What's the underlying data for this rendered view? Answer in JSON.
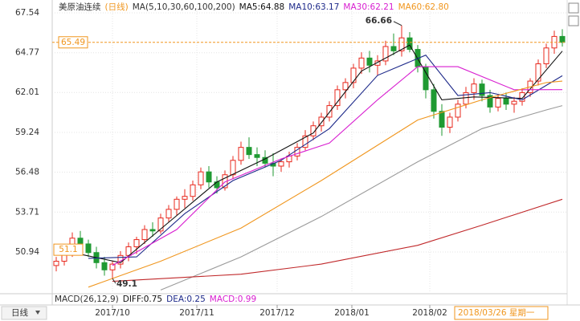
{
  "chart_data": {
    "type": "candlestick",
    "title": "美原油连续",
    "period": "(日线)",
    "ma_params": "MA(5,10,30,60,100,200)",
    "ylim": [
      48.1,
      68.15
    ],
    "yticks": [
      67.54,
      64.77,
      62.01,
      59.24,
      56.48,
      53.71,
      50.94
    ],
    "xlim": [
      -0.5,
      63.5
    ],
    "xticks": [
      {
        "value": 7,
        "label": "2017/10"
      },
      {
        "value": 17.5,
        "label": "2017/11"
      },
      {
        "value": 27.5,
        "label": "2017/12"
      },
      {
        "value": 36.8,
        "label": "2018/01"
      },
      {
        "value": 46.5,
        "label": "2018/02"
      }
    ],
    "grid": true,
    "up_color": "#e8281e",
    "down_color": "#1f9a32",
    "candles": [
      [
        50.0,
        50.6,
        49.6,
        50.3
      ],
      [
        50.3,
        51.0,
        50.0,
        50.8
      ],
      [
        50.8,
        52.3,
        50.6,
        51.9
      ],
      [
        51.9,
        52.4,
        51.2,
        51.5
      ],
      [
        51.5,
        51.8,
        50.6,
        50.9
      ],
      [
        50.9,
        51.3,
        49.8,
        50.2
      ],
      [
        50.2,
        50.6,
        49.3,
        49.7
      ],
      [
        49.7,
        50.3,
        49.1,
        50.1
      ],
      [
        50.1,
        51.0,
        49.8,
        50.7
      ],
      [
        50.7,
        51.6,
        50.3,
        51.3
      ],
      [
        51.3,
        52.0,
        50.8,
        51.8
      ],
      [
        51.8,
        52.8,
        51.5,
        52.5
      ],
      [
        52.5,
        53.0,
        52.0,
        52.4
      ],
      [
        52.4,
        53.6,
        52.2,
        53.3
      ],
      [
        53.3,
        54.2,
        53.0,
        53.9
      ],
      [
        53.9,
        54.8,
        53.5,
        54.6
      ],
      [
        54.6,
        55.3,
        54.0,
        54.8
      ],
      [
        54.8,
        55.9,
        54.5,
        55.6
      ],
      [
        55.6,
        56.8,
        55.3,
        56.5
      ],
      [
        56.5,
        56.9,
        55.4,
        55.8
      ],
      [
        55.8,
        56.2,
        55.0,
        55.4
      ],
      [
        55.4,
        56.6,
        55.2,
        56.3
      ],
      [
        56.3,
        57.6,
        56.0,
        57.3
      ],
      [
        57.3,
        58.6,
        57.0,
        58.2
      ],
      [
        58.2,
        58.9,
        57.4,
        57.7
      ],
      [
        57.7,
        58.2,
        56.9,
        57.5
      ],
      [
        57.5,
        58.0,
        56.8,
        57.1
      ],
      [
        57.1,
        57.8,
        56.2,
        56.9
      ],
      [
        56.9,
        57.4,
        56.5,
        57.2
      ],
      [
        57.2,
        57.9,
        56.8,
        57.6
      ],
      [
        57.6,
        58.5,
        57.3,
        58.2
      ],
      [
        58.2,
        59.4,
        58.0,
        59.0
      ],
      [
        59.0,
        60.0,
        58.7,
        59.7
      ],
      [
        59.7,
        60.6,
        59.3,
        60.3
      ],
      [
        60.3,
        61.4,
        60.0,
        61.1
      ],
      [
        61.1,
        62.5,
        60.8,
        62.2
      ],
      [
        62.2,
        63.0,
        61.6,
        62.7
      ],
      [
        62.7,
        64.0,
        62.3,
        63.7
      ],
      [
        63.7,
        64.8,
        63.3,
        64.4
      ],
      [
        64.4,
        64.9,
        63.4,
        63.9
      ],
      [
        63.9,
        64.6,
        63.2,
        64.2
      ],
      [
        64.2,
        65.6,
        63.9,
        65.2
      ],
      [
        65.2,
        66.1,
        64.6,
        64.9
      ],
      [
        64.9,
        66.66,
        64.5,
        65.8
      ],
      [
        65.8,
        66.2,
        64.8,
        65.0
      ],
      [
        65.0,
        65.3,
        63.4,
        63.8
      ],
      [
        63.8,
        64.0,
        61.6,
        62.2
      ],
      [
        62.2,
        62.6,
        60.2,
        60.7
      ],
      [
        60.7,
        61.2,
        59.0,
        59.6
      ],
      [
        59.6,
        60.6,
        59.2,
        60.3
      ],
      [
        60.3,
        61.5,
        60.0,
        61.2
      ],
      [
        61.2,
        62.4,
        60.9,
        62.0
      ],
      [
        62.0,
        63.0,
        61.5,
        62.6
      ],
      [
        62.6,
        62.9,
        61.4,
        61.8
      ],
      [
        61.8,
        62.2,
        60.6,
        61.0
      ],
      [
        61.0,
        61.9,
        60.7,
        61.6
      ],
      [
        61.6,
        62.0,
        60.8,
        61.2
      ],
      [
        61.2,
        61.7,
        60.6,
        61.4
      ],
      [
        61.4,
        62.3,
        61.1,
        62.0
      ],
      [
        62.0,
        63.0,
        61.7,
        62.8
      ],
      [
        62.8,
        64.3,
        62.5,
        64.0
      ],
      [
        64.0,
        65.4,
        63.7,
        65.1
      ],
      [
        65.1,
        66.3,
        64.7,
        65.9
      ],
      [
        65.9,
        66.4,
        65.2,
        65.49
      ]
    ],
    "series": [
      {
        "name": "MA5",
        "legend": "MA5:64.88",
        "color": "#111111",
        "x": [
          2,
          8,
          14,
          20,
          26,
          32,
          38,
          44,
          48,
          52,
          58,
          63
        ],
        "values": [
          50.9,
          50.2,
          53.0,
          55.8,
          57.4,
          59.2,
          63.5,
          65.3,
          61.5,
          61.7,
          61.6,
          64.88
        ]
      },
      {
        "name": "MA10",
        "legend": "MA10:63.17",
        "color": "#1e2a8a",
        "x": [
          4,
          10,
          16,
          22,
          28,
          34,
          40,
          46,
          50,
          54,
          58,
          63
        ],
        "values": [
          50.5,
          50.6,
          53.6,
          55.9,
          57.3,
          59.5,
          63.2,
          64.6,
          61.8,
          62.0,
          61.5,
          63.17
        ]
      },
      {
        "name": "MA30",
        "legend": "MA30:62.21",
        "color": "#d81ed0",
        "x": [
          7,
          15,
          21,
          28,
          34,
          40,
          45,
          50,
          57,
          63
        ],
        "values": [
          50.0,
          52.5,
          55.8,
          57.4,
          58.5,
          61.5,
          63.8,
          63.8,
          62.2,
          62.21
        ]
      },
      {
        "name": "MA60",
        "legend": "MA60:62.80",
        "color": "#f0961e",
        "x": [
          4,
          13,
          23,
          33,
          45,
          53,
          61,
          63
        ],
        "values": [
          48.5,
          50.3,
          52.6,
          55.9,
          60.1,
          61.5,
          62.7,
          62.8
        ]
      },
      {
        "name": "MA100",
        "color": "#9a9a9a",
        "x": [
          13,
          23,
          33,
          45,
          53,
          61,
          63
        ],
        "values": [
          48.3,
          50.6,
          53.4,
          57.2,
          59.5,
          60.8,
          61.1
        ]
      },
      {
        "name": "MA200",
        "color": "#c0282a",
        "x": [
          7,
          23,
          33,
          45,
          53,
          63
        ],
        "values": [
          48.9,
          49.4,
          50.1,
          51.4,
          52.8,
          54.6
        ]
      }
    ],
    "ref_price": 51.1,
    "macd_header": [
      "MACD(26,12,9)",
      "DIFF:0.75",
      "DEA:0.25",
      "MACD:0.99"
    ],
    "period_button": "日线",
    "cursor_date": "2018/03/26 星期一"
  }
}
